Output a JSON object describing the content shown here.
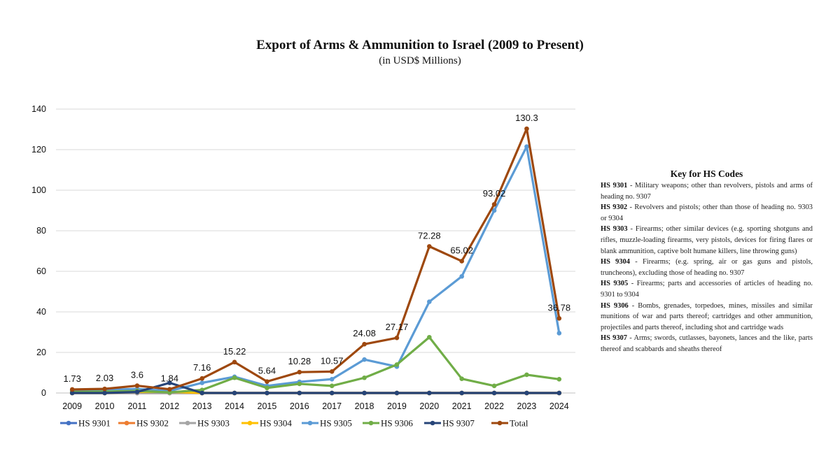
{
  "chart_data": {
    "type": "line",
    "title": "Export of Arms & Ammunition to Israel (2009 to Present)",
    "subtitle": "(in USD$ Millions)",
    "xlabel": "",
    "ylabel": "",
    "ylim": [
      0,
      140
    ],
    "yticks": [
      0,
      20,
      40,
      60,
      80,
      100,
      120,
      140
    ],
    "grid": "horizontal",
    "legend_position": "bottom",
    "categories": [
      "2009",
      "2010",
      "2011",
      "2012",
      "2013",
      "2014",
      "2015",
      "2016",
      "2017",
      "2018",
      "2019",
      "2020",
      "2021",
      "2022",
      "2023",
      "2024"
    ],
    "series": [
      {
        "name": "HS 9301",
        "color": "#4472c4",
        "values": [
          0,
          0,
          0,
          0,
          0,
          0,
          0,
          0,
          0,
          0,
          0,
          0,
          0,
          0,
          0,
          0
        ]
      },
      {
        "name": "HS 9302",
        "color": "#ed7d31",
        "values": [
          0,
          0,
          0,
          0,
          0,
          0,
          0,
          0,
          0,
          0,
          0,
          0,
          0,
          0,
          0,
          0
        ]
      },
      {
        "name": "HS 9303",
        "color": "#a5a5a5",
        "values": [
          0,
          0,
          0,
          0,
          0,
          0,
          0,
          0,
          0,
          0,
          0,
          0,
          0,
          0,
          0,
          0
        ]
      },
      {
        "name": "HS 9304",
        "color": "#ffc000",
        "values": [
          0,
          0,
          0.5,
          0.6,
          0,
          0,
          0,
          0,
          0,
          0,
          0,
          0,
          0,
          0,
          0,
          0
        ]
      },
      {
        "name": "HS 9305",
        "color": "#5b9bd5",
        "values": [
          1.2,
          1.5,
          2.0,
          1.0,
          5.0,
          8.0,
          3.5,
          5.5,
          6.8,
          16.5,
          13.0,
          45.0,
          57.5,
          90.0,
          121.5,
          29.5
        ]
      },
      {
        "name": "HS 9306",
        "color": "#70ad47",
        "values": [
          0.5,
          0.7,
          1.0,
          0.3,
          1.5,
          7.5,
          2.5,
          4.5,
          3.5,
          7.5,
          14.0,
          27.5,
          7.0,
          3.5,
          9.0,
          6.8
        ]
      },
      {
        "name": "HS 9307",
        "color": "#264478",
        "values": [
          0,
          0,
          0.5,
          5.0,
          0,
          0,
          0,
          0,
          0,
          0,
          0,
          0,
          0,
          0,
          0,
          0
        ]
      },
      {
        "name": "Total",
        "color": "#9e480e",
        "values": [
          1.73,
          2.03,
          3.6,
          1.84,
          7.16,
          15.22,
          5.64,
          10.28,
          10.57,
          24.08,
          27.17,
          72.28,
          65.02,
          93.02,
          130.3,
          36.78
        ]
      }
    ],
    "data_labels": {
      "series": "Total",
      "labels": [
        "1.73",
        "2.03",
        "3.6",
        "1.84",
        "7.16",
        "15.22",
        "5.64",
        "10.28",
        "10.57",
        "24.08",
        "27.17",
        "72.28",
        "65.02",
        "93.02",
        "130.3",
        "36.78"
      ]
    }
  },
  "key": {
    "title": "Key for HS Codes",
    "items": [
      {
        "code": "HS 9301",
        "desc": " - Military weapons; other than revolvers, pistols and arms of heading no. 9307"
      },
      {
        "code": "HS 9302",
        "desc": " - Revolvers and pistols; other than those of heading no. 9303 or 9304"
      },
      {
        "code": "HS 9303",
        "desc": " - Firearms; other similar devices (e.g. sporting shotguns and rifles, muzzle-loading firearms, very pistols, devices for firing flares or blank ammunition, captive bolt humane killers, line throwing guns)"
      },
      {
        "code": "HS 9304",
        "desc": " - Firearms; (e.g. spring, air or gas guns and pistols, truncheons), excluding those of heading no. 9307"
      },
      {
        "code": "HS 9305",
        "desc": " - Firearms; parts and accessories of articles of heading no. 9301 to 9304"
      },
      {
        "code": "HS 9306",
        "desc": " - Bombs, grenades, torpedoes, mines, missiles and similar munitions of war and parts thereof; cartridges and other ammunition, projectiles and parts thereof, including shot and cartridge wads"
      },
      {
        "code": "HS 9307",
        "desc": " - Arms; swords, cutlasses, bayonets, lances and the like, parts thereof and scabbards and sheaths thereof"
      }
    ]
  }
}
